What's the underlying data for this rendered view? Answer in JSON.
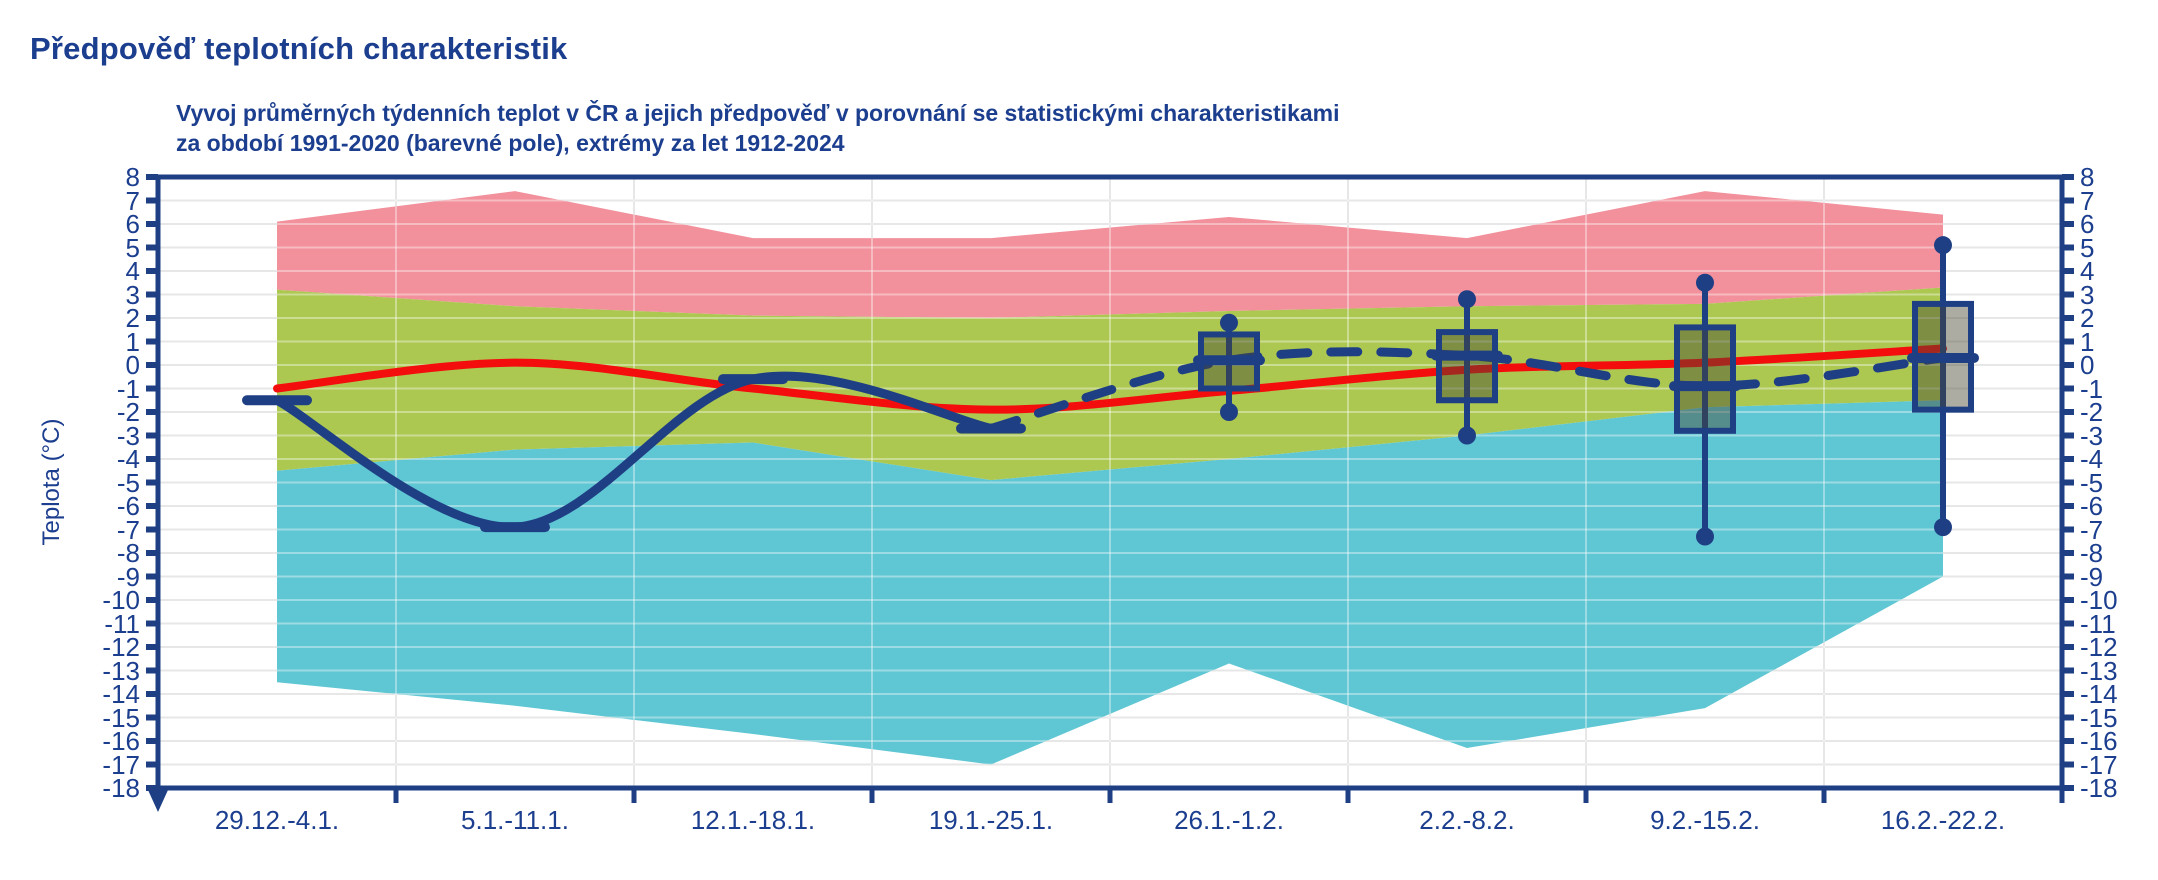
{
  "header": {
    "title": "Předpověď teplotních charakteristik"
  },
  "chart": {
    "subtitle_line1": "Vyvoj průměrných týdenních teplot v ČR a jejich předpověď v porovnání se statistickými charakteristikami",
    "subtitle_line2": "za období 1991-2020 (barevné pole), extrémy za let 1912-2024",
    "ylabel": "Teplota (°C)"
  },
  "chart_data": {
    "type": "combo",
    "title": "Předpověď teplotních charakteristik",
    "xlabel": "",
    "ylabel": "Teplota (°C)",
    "ylim": [
      -18,
      8
    ],
    "grid": true,
    "legend": "none",
    "categories": [
      "29.12.-4.1.",
      "5.1.-11.1.",
      "12.1.-18.1.",
      "19.1.-25.1.",
      "26.1.-1.2.",
      "2.2.-8.2.",
      "9.2.-15.2.",
      "16.2.-22.2."
    ],
    "yticks": [
      8,
      7,
      6,
      5,
      4,
      3,
      2,
      1,
      0,
      -1,
      -2,
      -3,
      -4,
      -5,
      -6,
      -7,
      -8,
      -9,
      -10,
      -11,
      -12,
      -13,
      -14,
      -15,
      -16,
      -17,
      -18
    ],
    "bands": {
      "extreme_max_1912_2024": [
        6.1,
        7.4,
        5.4,
        5.4,
        6.3,
        5.4,
        7.4,
        6.4
      ],
      "normal_upper_1991_2020": [
        3.2,
        2.5,
        2.1,
        2.0,
        2.3,
        2.5,
        2.6,
        3.3
      ],
      "normal_lower_1991_2020": [
        -4.5,
        -3.6,
        -3.3,
        -4.9,
        -4.0,
        -3.0,
        -1.8,
        -1.5
      ],
      "extreme_min_1912_2024": [
        -13.5,
        -14.5,
        -15.7,
        -17.0,
        -12.7,
        -16.3,
        -14.6,
        -9.0
      ],
      "color_above_normal": "#F2909C",
      "color_normal": "#ACC851",
      "color_below_normal": "#5FC6D3"
    },
    "mean_1991_2020": {
      "color": "#F40D0D",
      "values": [
        -1.0,
        0.1,
        -1.0,
        -1.9,
        -1.1,
        -0.2,
        0.1,
        0.7
      ]
    },
    "observed_weekly_mean": {
      "color": "#1F3F85",
      "values": [
        -1.5,
        -6.9,
        -0.6,
        -2.7,
        null,
        null,
        null,
        null
      ]
    },
    "forecast_median_line": {
      "color": "#1F3F85",
      "dashed": true,
      "values": [
        null,
        null,
        null,
        -2.7,
        0.2,
        0.4,
        -0.9,
        0.3
      ]
    },
    "forecast_boxes": [
      {
        "category_index": 4,
        "whisker_max": 1.8,
        "q75": 1.3,
        "median": 0.2,
        "q25": -1.0,
        "whisker_min": -2.0
      },
      {
        "category_index": 5,
        "whisker_max": 2.8,
        "q75": 1.4,
        "median": 0.4,
        "q25": -1.5,
        "whisker_min": -3.0
      },
      {
        "category_index": 6,
        "whisker_max": 3.5,
        "q75": 1.6,
        "median": -0.9,
        "q25": -2.8,
        "whisker_min": -7.3
      },
      {
        "category_index": 7,
        "whisker_max": 5.1,
        "q75": 2.6,
        "median": 0.3,
        "q25": -1.9,
        "whisker_min": -6.9
      }
    ],
    "colors": {
      "navy": "#1F3F85",
      "box_fill": "rgba(70,70,50,0.45)",
      "grid": "#D9D9D9"
    }
  }
}
